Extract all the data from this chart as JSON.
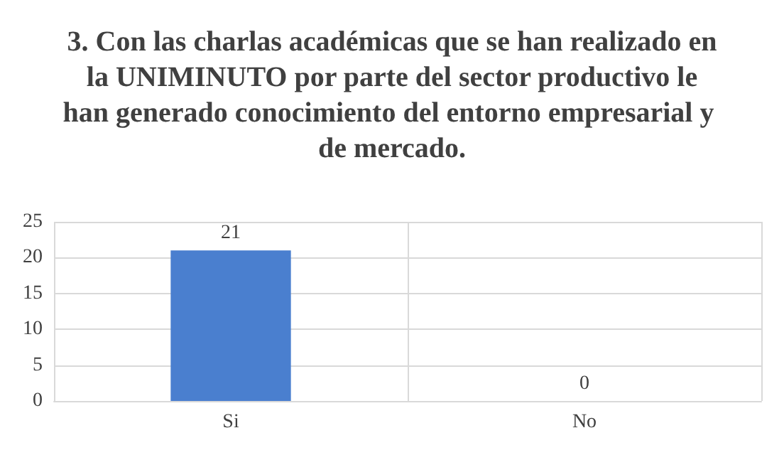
{
  "chart_data": {
    "type": "bar",
    "title": "3. Con las charlas académicas que se han realizado en la UNIMINUTO por parte del sector productivo le han generado conocimiento del entorno empresarial y de mercado.",
    "categories": [
      "Si",
      "No"
    ],
    "values": [
      21,
      0
    ],
    "color": "#4a7fcf",
    "ylim": [
      0,
      25
    ],
    "yticks": [
      0,
      5,
      10,
      15,
      20,
      25
    ],
    "grid": true,
    "data_labels": true
  }
}
